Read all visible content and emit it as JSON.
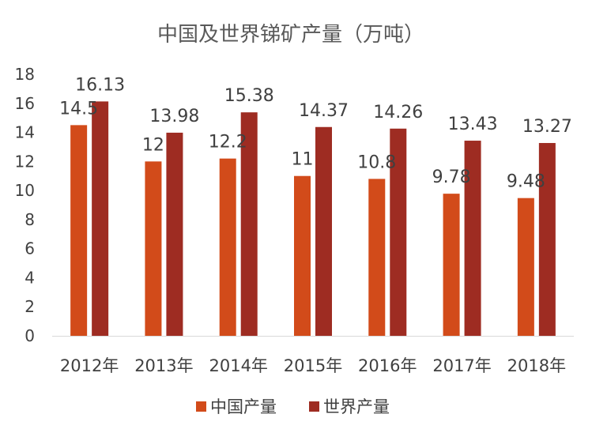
{
  "chart_data": {
    "type": "bar",
    "title": "中国及世界锑矿产量（万吨）",
    "categories": [
      "2012年",
      "2013年",
      "2014年",
      "2015年",
      "2016年",
      "2017年",
      "2018年"
    ],
    "series": [
      {
        "name": "中国产量",
        "color": "#D24B1A",
        "values": [
          14.5,
          12,
          12.2,
          11,
          10.8,
          9.78,
          9.48
        ],
        "labels": [
          "14.5",
          "12",
          "12.2",
          "11",
          "10.8",
          "9.78",
          "9.48"
        ]
      },
      {
        "name": "世界产量",
        "color": "#9E2C22",
        "values": [
          16.13,
          13.98,
          15.38,
          14.37,
          14.26,
          13.43,
          13.27
        ],
        "labels": [
          "16.13",
          "13.98",
          "15.38",
          "14.37",
          "14.26",
          "13.43",
          "13.27"
        ]
      }
    ],
    "ylim": [
      0,
      18
    ],
    "yticks": [
      "0",
      "2",
      "4",
      "6",
      "8",
      "10",
      "12",
      "14",
      "16",
      "18"
    ],
    "xlabel": "",
    "ylabel": "",
    "grid": false,
    "legend": "bottom-center"
  }
}
